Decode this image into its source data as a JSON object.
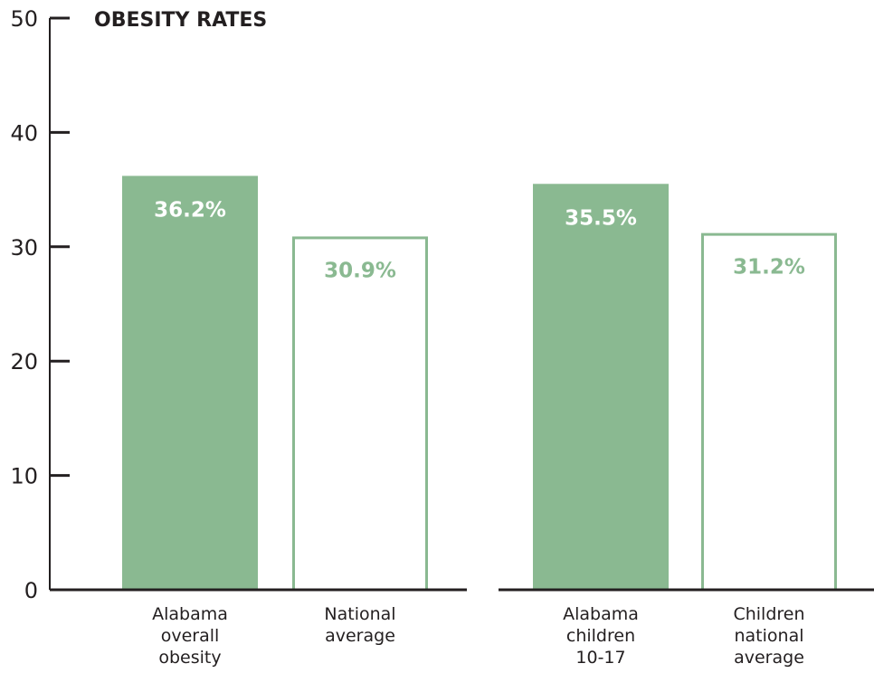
{
  "chart_data": {
    "type": "bar",
    "title": "OBESITY RATES",
    "ylim": [
      0,
      50
    ],
    "yticks": [
      0,
      10,
      20,
      30,
      40,
      50
    ],
    "grid": false,
    "bars": [
      {
        "category": [
          "Alabama",
          "overall",
          "obesity"
        ],
        "value": 36.2,
        "label": "36.2%",
        "style": "filled",
        "group": 1
      },
      {
        "category": [
          "National",
          "average"
        ],
        "value": 30.9,
        "label": "30.9%",
        "style": "outline",
        "group": 1
      },
      {
        "category": [
          "Alabama",
          "children",
          "10-17"
        ],
        "value": 35.5,
        "label": "35.5%",
        "style": "filled",
        "group": 2
      },
      {
        "category": [
          "Children",
          "national",
          "average"
        ],
        "value": 31.2,
        "label": "31.2%",
        "style": "outline",
        "group": 2
      }
    ],
    "colors": {
      "bar": "#8ab991",
      "axis": "#231f20",
      "text": "#231f20",
      "label_on_fill": "#ffffff"
    }
  }
}
